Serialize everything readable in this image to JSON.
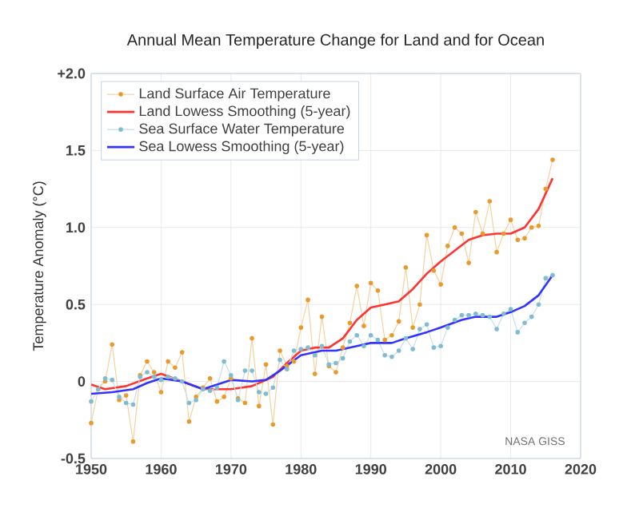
{
  "chart_data": {
    "type": "line",
    "title": "Annual Mean Temperature Change for Land and for Ocean",
    "ylabel": "Temperature Anomaly (°C)",
    "xlim": [
      1950,
      2020
    ],
    "xticks": [
      1950,
      1960,
      1970,
      1980,
      1990,
      2000,
      2010,
      2020
    ],
    "ylim": [
      -0.5,
      2.0
    ],
    "yticks": [
      -0.5,
      0,
      0.5,
      {
        "value": 1.0,
        "label": "1.0"
      },
      1.5,
      {
        "value": 2.0,
        "label": "+2.0"
      }
    ],
    "grid": true,
    "legend": "top left",
    "annotations": [
      "NASA GISS"
    ],
    "series": [
      {
        "name": "Land Surface Air Temperature",
        "color": "#e89a2c",
        "marker": "circle",
        "x": [
          1950,
          1951,
          1952,
          1953,
          1954,
          1955,
          1956,
          1957,
          1958,
          1959,
          1960,
          1961,
          1962,
          1963,
          1964,
          1965,
          1966,
          1967,
          1968,
          1969,
          1970,
          1971,
          1972,
          1973,
          1974,
          1975,
          1976,
          1977,
          1978,
          1979,
          1980,
          1981,
          1982,
          1983,
          1984,
          1985,
          1986,
          1987,
          1988,
          1989,
          1990,
          1991,
          1992,
          1993,
          1994,
          1995,
          1996,
          1997,
          1998,
          1999,
          2000,
          2001,
          2002,
          2003,
          2004,
          2005,
          2006,
          2007,
          2008,
          2009,
          2010,
          2011,
          2012,
          2013,
          2014,
          2015,
          2016
        ],
        "values": [
          -0.27,
          -0.05,
          0.0,
          0.24,
          -0.12,
          -0.09,
          -0.39,
          0.04,
          0.13,
          0.06,
          -0.07,
          0.13,
          0.09,
          0.19,
          -0.26,
          -0.1,
          -0.04,
          0.02,
          -0.13,
          -0.1,
          0.02,
          -0.11,
          -0.14,
          0.28,
          -0.16,
          0.11,
          -0.28,
          0.2,
          0.1,
          0.13,
          0.35,
          0.53,
          0.05,
          0.42,
          0.1,
          0.06,
          0.22,
          0.38,
          0.62,
          0.36,
          0.64,
          0.59,
          0.27,
          0.3,
          0.39,
          0.74,
          0.35,
          0.5,
          0.95,
          0.72,
          0.63,
          0.88,
          1.0,
          0.96,
          0.77,
          1.1,
          0.96,
          1.17,
          0.84,
          0.96,
          1.05,
          0.92,
          0.93,
          1.0,
          1.01,
          1.25,
          1.44
        ]
      },
      {
        "name": "Land Lowess Smoothing (5-year)",
        "color": "#ff3333",
        "x": [
          1950,
          1952,
          1955,
          1958,
          1960,
          1963,
          1966,
          1970,
          1973,
          1976,
          1978,
          1980,
          1982,
          1984,
          1986,
          1988,
          1990,
          1992,
          1994,
          1996,
          1998,
          2000,
          2002,
          2004,
          2006,
          2008,
          2010,
          2012,
          2014,
          2016
        ],
        "values": [
          -0.02,
          -0.05,
          -0.03,
          0.02,
          0.05,
          0.0,
          -0.05,
          -0.05,
          -0.03,
          0.03,
          0.12,
          0.2,
          0.22,
          0.22,
          0.28,
          0.4,
          0.48,
          0.5,
          0.52,
          0.6,
          0.7,
          0.78,
          0.85,
          0.92,
          0.95,
          0.96,
          0.96,
          1.0,
          1.12,
          1.32
        ]
      },
      {
        "name": "Sea Surface Water Temperature",
        "color": "#7fbcd2",
        "marker": "circle",
        "x": [
          1950,
          1951,
          1952,
          1953,
          1954,
          1955,
          1956,
          1957,
          1958,
          1959,
          1960,
          1961,
          1962,
          1963,
          1964,
          1965,
          1966,
          1967,
          1968,
          1969,
          1970,
          1971,
          1972,
          1973,
          1974,
          1975,
          1976,
          1977,
          1978,
          1979,
          1980,
          1981,
          1982,
          1983,
          1984,
          1985,
          1986,
          1987,
          1988,
          1989,
          1990,
          1991,
          1992,
          1993,
          1994,
          1995,
          1996,
          1997,
          1998,
          1999,
          2000,
          2001,
          2002,
          2003,
          2004,
          2005,
          2006,
          2007,
          2008,
          2009,
          2010,
          2011,
          2012,
          2013,
          2014,
          2015,
          2016
        ],
        "values": [
          -0.13,
          -0.05,
          0.02,
          0.01,
          -0.1,
          -0.14,
          -0.15,
          0.03,
          0.06,
          0.03,
          0.01,
          0.03,
          0.02,
          0.0,
          -0.14,
          -0.12,
          -0.05,
          -0.06,
          -0.04,
          0.13,
          0.04,
          -0.12,
          0.07,
          0.07,
          -0.07,
          -0.08,
          -0.04,
          0.14,
          0.08,
          0.2,
          0.21,
          0.22,
          0.17,
          0.23,
          0.11,
          0.12,
          0.15,
          0.26,
          0.3,
          0.23,
          0.3,
          0.27,
          0.17,
          0.16,
          0.2,
          0.28,
          0.21,
          0.34,
          0.37,
          0.22,
          0.23,
          0.35,
          0.4,
          0.43,
          0.43,
          0.44,
          0.43,
          0.42,
          0.34,
          0.44,
          0.47,
          0.32,
          0.38,
          0.42,
          0.5,
          0.67,
          0.69
        ]
      },
      {
        "name": "Sea Lowess Smoothing (5-year)",
        "color": "#3333ff",
        "x": [
          1950,
          1953,
          1956,
          1958,
          1960,
          1963,
          1966,
          1968,
          1970,
          1973,
          1975,
          1977,
          1980,
          1983,
          1985,
          1988,
          1990,
          1993,
          1995,
          1998,
          2000,
          2003,
          2005,
          2008,
          2010,
          2012,
          2014,
          2016
        ],
        "values": [
          -0.08,
          -0.07,
          -0.05,
          -0.01,
          0.02,
          0.0,
          -0.05,
          -0.02,
          0.01,
          0.0,
          0.01,
          0.07,
          0.17,
          0.2,
          0.2,
          0.23,
          0.25,
          0.25,
          0.28,
          0.32,
          0.35,
          0.4,
          0.42,
          0.42,
          0.45,
          0.49,
          0.56,
          0.69
        ]
      }
    ]
  }
}
